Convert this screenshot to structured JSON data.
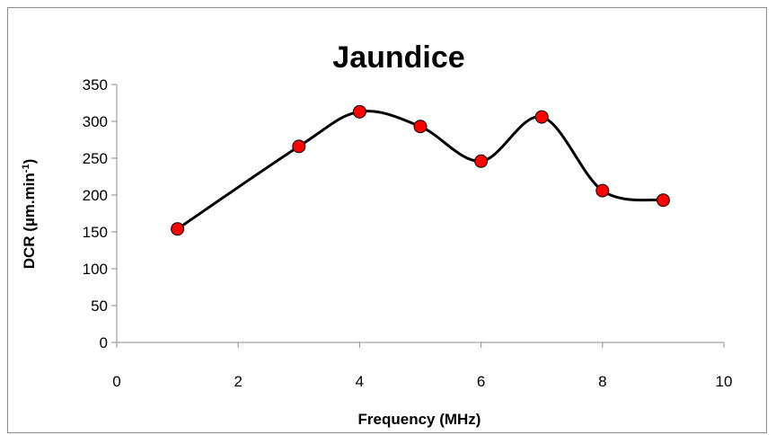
{
  "chart_data": {
    "type": "scatter",
    "title": "Jaundice",
    "xlabel": "Frequency (MHz)",
    "ylabel_main": "DCR (µm.min",
    "ylabel_sup": "-1",
    "ylabel_close": ")",
    "xlim": [
      0,
      10
    ],
    "ylim": [
      0,
      350
    ],
    "xticks": [
      "0",
      "2",
      "4",
      "6",
      "8",
      "10"
    ],
    "yticks": [
      "0",
      "50",
      "100",
      "150",
      "200",
      "250",
      "300",
      "350"
    ],
    "grid": false,
    "legend": "none",
    "line_style": "smooth",
    "line_color": "#000000",
    "marker_color": "#ff0000",
    "marker_edge_color": "#000000",
    "series": [
      {
        "x": [
          1,
          3,
          4,
          5,
          6,
          7,
          8,
          9
        ],
        "y": [
          154,
          266,
          313,
          293,
          246,
          306,
          206,
          193
        ]
      }
    ]
  }
}
